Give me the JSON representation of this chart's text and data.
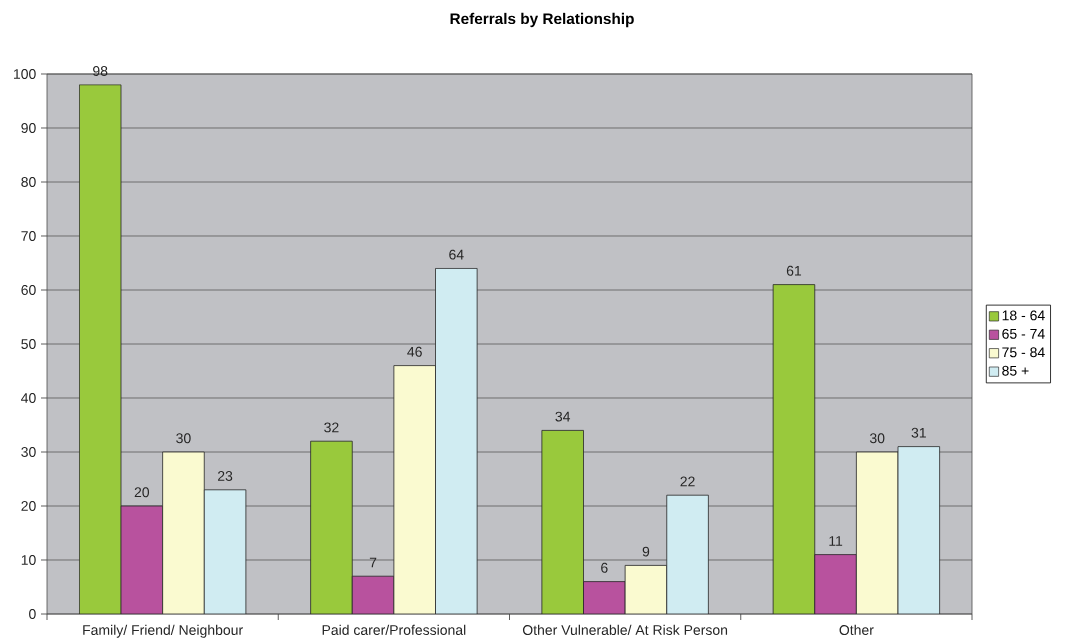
{
  "chart_data": {
    "type": "bar",
    "title": "Referrals by Relationship",
    "categories": [
      "Family/ Friend/ Neighbour",
      "Paid carer/Professional",
      "Other Vulnerable/ At Risk Person",
      "Other"
    ],
    "series": [
      {
        "name": "18 - 64",
        "color": "#99c93c",
        "values": [
          98,
          32,
          34,
          61
        ]
      },
      {
        "name": "65 - 74",
        "color": "#b8529e",
        "values": [
          20,
          7,
          6,
          11
        ]
      },
      {
        "name": "75 - 84",
        "color": "#fafad0",
        "values": [
          30,
          46,
          9,
          30
        ]
      },
      {
        "name": "85 +",
        "color": "#d0ecf2",
        "values": [
          23,
          64,
          22,
          31
        ]
      }
    ],
    "ylim": [
      0,
      100
    ],
    "yticks": [
      0,
      10,
      20,
      30,
      40,
      50,
      60,
      70,
      80,
      90,
      100
    ],
    "grid": "y",
    "legend": "right",
    "data_labels": true
  }
}
